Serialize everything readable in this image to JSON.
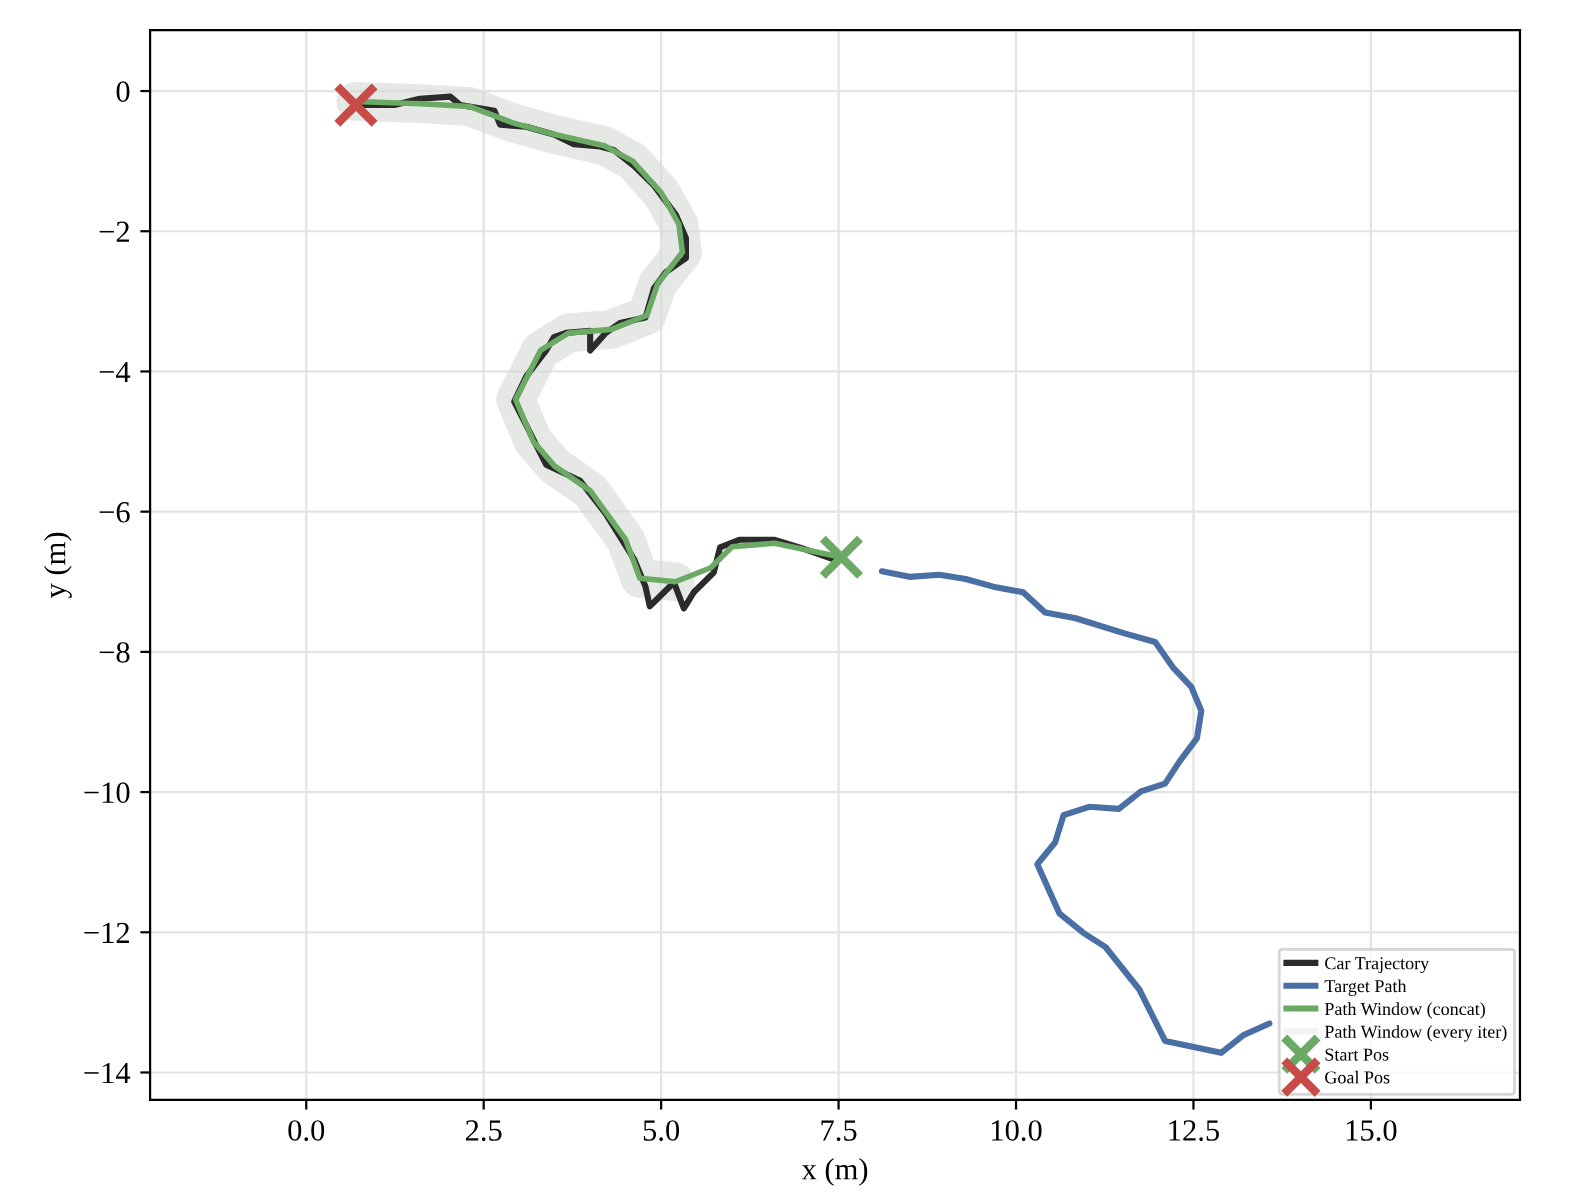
{
  "chart_data": {
    "type": "line",
    "xlabel": "x (m)",
    "ylabel": "y (m)",
    "xlim": [
      -2.2,
      17.1
    ],
    "ylim": [
      -14.39,
      0.87
    ],
    "xticks": [
      {
        "value": 0,
        "label": "0.0"
      },
      {
        "value": 2.5,
        "label": "2.5"
      },
      {
        "value": 5,
        "label": "5.0"
      },
      {
        "value": 7.5,
        "label": "7.5"
      },
      {
        "value": 10,
        "label": "10.0"
      },
      {
        "value": 12.5,
        "label": "12.5"
      },
      {
        "value": 15,
        "label": "15.0"
      }
    ],
    "yticks": [
      {
        "value": -14,
        "label": "−14"
      },
      {
        "value": -12,
        "label": "−12"
      },
      {
        "value": -10,
        "label": "−10"
      },
      {
        "value": -8,
        "label": "−8"
      },
      {
        "value": -6,
        "label": "−6"
      },
      {
        "value": -4,
        "label": "−4"
      },
      {
        "value": -2,
        "label": "−2"
      },
      0
    ],
    "grid": true,
    "legend": "bottom right",
    "series": [
      {
        "name": "Path Window (every iter)",
        "color": "#d4d8d4",
        "x": [
          0.7,
          1.6,
          2.3,
          2.9,
          3.5,
          4.2,
          4.6,
          5.0,
          5.25,
          5.3,
          4.95,
          4.8,
          4.3,
          3.7,
          3.3,
          2.95,
          3.2,
          3.5,
          4.0,
          4.5,
          4.7,
          5.2
        ],
        "values": [
          -0.15,
          -0.18,
          -0.22,
          -0.45,
          -0.62,
          -0.78,
          -1.0,
          -1.45,
          -1.9,
          -2.3,
          -2.75,
          -3.2,
          -3.4,
          -3.45,
          -3.7,
          -4.4,
          -5.0,
          -5.35,
          -5.7,
          -6.4,
          -6.95,
          -7.0
        ]
      },
      {
        "name": "Car Trajectory",
        "color": "#2b2b2b",
        "x": [
          0.7,
          1.24,
          1.6,
          2.03,
          2.17,
          2.65,
          2.73,
          3.1,
          3.49,
          3.77,
          4.14,
          4.33,
          4.62,
          4.9,
          5.21,
          5.35,
          5.35,
          5.07,
          4.9,
          4.78,
          4.42,
          4.22,
          4.0,
          4.0,
          3.66,
          3.49,
          3.38,
          3.1,
          2.93,
          3.07,
          3.21,
          3.38,
          3.86,
          4.22,
          4.62,
          4.78,
          4.84,
          4.98,
          5.18,
          5.32,
          5.46,
          5.74,
          5.83,
          6.11,
          6.59,
          7.04,
          7.43
        ],
        "values": [
          -0.2,
          -0.2,
          -0.11,
          -0.08,
          -0.2,
          -0.28,
          -0.48,
          -0.51,
          -0.62,
          -0.76,
          -0.79,
          -0.84,
          -1.07,
          -1.35,
          -1.77,
          -2.1,
          -2.38,
          -2.58,
          -2.81,
          -3.23,
          -3.31,
          -3.45,
          -3.7,
          -3.42,
          -3.45,
          -3.51,
          -3.7,
          -4.07,
          -4.43,
          -4.71,
          -4.99,
          -5.33,
          -5.56,
          -6.03,
          -6.68,
          -7.07,
          -7.35,
          -7.21,
          -7.01,
          -7.38,
          -7.15,
          -6.87,
          -6.51,
          -6.4,
          -6.4,
          -6.54,
          -6.68
        ]
      },
      {
        "name": "Target Path",
        "color": "#4a6fa5",
        "x": [
          8.11,
          8.5,
          8.92,
          9.29,
          9.68,
          10.1,
          10.41,
          10.84,
          11.54,
          11.96,
          12.21,
          12.47,
          12.61,
          12.55,
          12.3,
          12.1,
          11.76,
          11.45,
          11.03,
          10.67,
          10.55,
          10.3,
          10.61,
          10.95,
          11.26,
          11.74,
          12.1,
          12.52,
          12.89,
          13.2,
          13.57
        ],
        "values": [
          -6.85,
          -6.93,
          -6.9,
          -6.96,
          -7.07,
          -7.15,
          -7.44,
          -7.52,
          -7.74,
          -7.86,
          -8.22,
          -8.5,
          -8.84,
          -9.23,
          -9.57,
          -9.88,
          -9.99,
          -10.24,
          -10.21,
          -10.33,
          -10.72,
          -11.03,
          -11.73,
          -12.01,
          -12.21,
          -12.82,
          -13.55,
          -13.64,
          -13.72,
          -13.47,
          -13.3
        ]
      },
      {
        "name": "Path Window (concat)",
        "color": "#6aaa64",
        "x": [
          0.7,
          1.6,
          2.3,
          2.9,
          3.5,
          4.2,
          4.6,
          5.0,
          5.25,
          5.3,
          4.95,
          4.8,
          4.3,
          3.7,
          3.3,
          2.95,
          3.2,
          3.5,
          4.0,
          4.5,
          4.7,
          5.2,
          5.7,
          6.0,
          6.6,
          7.54
        ],
        "values": [
          -0.15,
          -0.18,
          -0.22,
          -0.45,
          -0.62,
          -0.78,
          -1.0,
          -1.45,
          -1.9,
          -2.3,
          -2.75,
          -3.2,
          -3.4,
          -3.45,
          -3.7,
          -4.4,
          -5.0,
          -5.35,
          -5.7,
          -6.4,
          -6.95,
          -7.0,
          -6.8,
          -6.5,
          -6.45,
          -6.65
        ]
      },
      {
        "name": "Start Pos",
        "color": "#6aaa64",
        "type": "scatter",
        "marker": "cross",
        "x": [
          7.54
        ],
        "values": [
          -6.65
        ]
      },
      {
        "name": "Goal Pos",
        "color": "#c84b48",
        "type": "scatter",
        "marker": "cross",
        "x": [
          0.7
        ],
        "values": [
          -0.2
        ]
      }
    ]
  }
}
